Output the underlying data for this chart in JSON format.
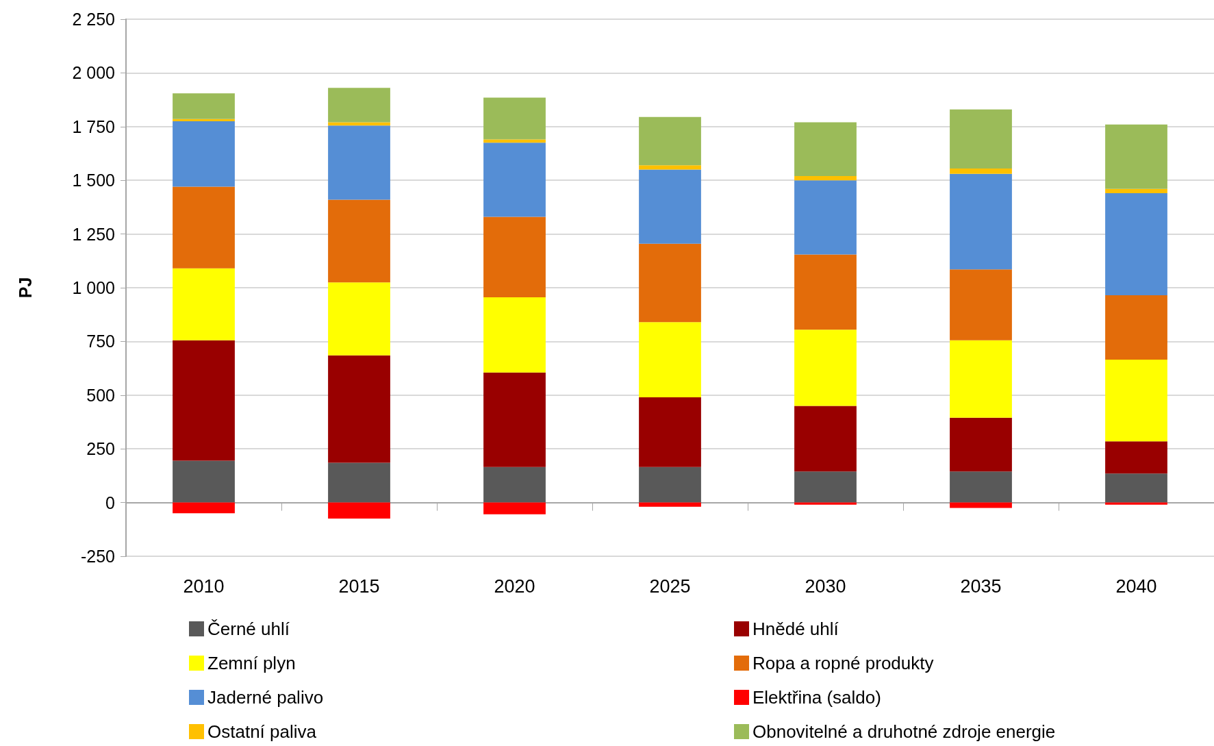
{
  "chart_data": {
    "type": "bar",
    "stacked": true,
    "ylabel": "PJ",
    "categories": [
      "2010",
      "2015",
      "2020",
      "2025",
      "2030",
      "2035",
      "2040"
    ],
    "ylim": [
      -250,
      2250
    ],
    "yticks": [
      -250,
      0,
      250,
      500,
      750,
      {
        "value": 1000,
        "label": "1 000"
      },
      {
        "value": 1250,
        "label": "1 250"
      },
      {
        "value": 1500,
        "label": "1 500"
      },
      {
        "value": 1750,
        "label": "1 750"
      },
      {
        "value": 2000,
        "label": "2 000"
      },
      {
        "value": 2250,
        "label": "2 250"
      }
    ],
    "grid": "y",
    "legend": "bottom",
    "series": [
      {
        "name": "Černé uhlí",
        "color": "#595959",
        "values": [
          195,
          185,
          165,
          165,
          145,
          145,
          135
        ]
      },
      {
        "name": "Hnědé uhlí",
        "color": "#990000",
        "values": [
          560,
          500,
          440,
          325,
          305,
          250,
          150
        ]
      },
      {
        "name": "Zemní plyn",
        "color": "#ffff00",
        "values": [
          335,
          340,
          350,
          350,
          355,
          360,
          380
        ]
      },
      {
        "name": "Ropa a ropné produkty",
        "color": "#e36c0a",
        "values": [
          380,
          385,
          375,
          365,
          350,
          330,
          300
        ]
      },
      {
        "name": "Jaderné palivo",
        "color": "#558ed5",
        "values": [
          305,
          345,
          345,
          345,
          345,
          445,
          475
        ]
      },
      {
        "name": "Elektřina (saldo)",
        "color": "#ff0000",
        "values": [
          -50,
          -75,
          -55,
          -20,
          -10,
          -25,
          -10
        ]
      },
      {
        "name": "Ostatní paliva",
        "color": "#ffc000",
        "values": [
          10,
          15,
          15,
          20,
          20,
          25,
          20
        ]
      },
      {
        "name": "Obnovitelné a druhotné zdroje energie",
        "color": "#9bbb59",
        "values": [
          120,
          160,
          195,
          225,
          250,
          275,
          300
        ]
      }
    ]
  }
}
